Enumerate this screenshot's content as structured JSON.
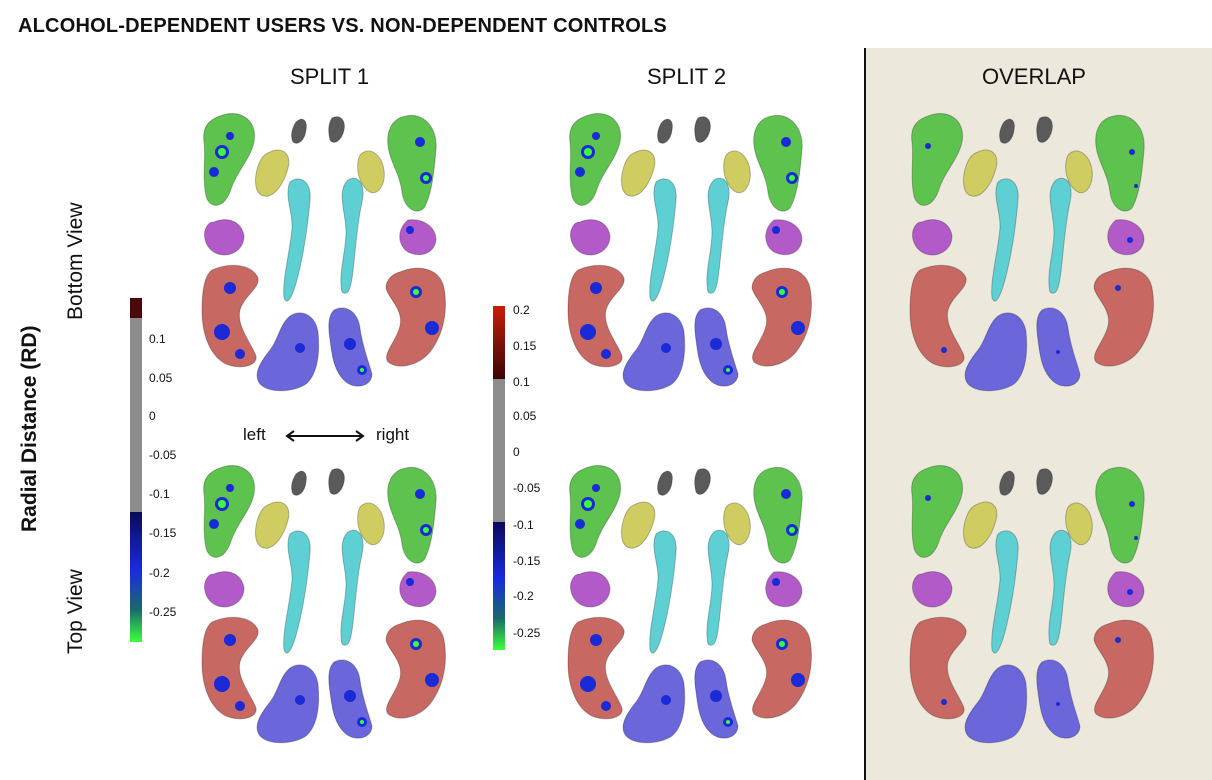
{
  "title": "ALCOHOL-DEPENDENT USERS VS. NON-DEPENDENT CONTROLS",
  "columns": [
    "SPLIT 1",
    "SPLIT 2",
    "OVERLAP"
  ],
  "row_labels": {
    "bottom": "Bottom View",
    "top": "Top View"
  },
  "y_label": "Radial Distance (RD)",
  "direction": {
    "left": "left",
    "right": "right"
  },
  "colorbar_left": {
    "ticks": [
      "0.1",
      "0.05",
      "0",
      "-0.05",
      "-0.1",
      "-0.15",
      "-0.2",
      "-0.25"
    ],
    "range": [
      -0.29,
      0.14
    ]
  },
  "colorbar_right": {
    "ticks": [
      "0.2",
      "0.15",
      "0.1",
      "0.05",
      "0",
      "-0.05",
      "-0.1",
      "-0.15",
      "-0.2",
      "-0.25"
    ],
    "range": [
      -0.28,
      0.21
    ]
  },
  "structure_colors": {
    "hippocampus": "#5ec24e",
    "amygdala": "#cfcc62",
    "accumbens": "#5a5a5a",
    "caudate": "#5ecfd2",
    "thalamus": "#b25ac8",
    "putamen": "#c86862",
    "pallidum": "#6b66d9"
  },
  "map_colors": {
    "significant_negative": "#1a2ad6",
    "strong_negative": "#3cff3c",
    "significant_positive": "#8a1010"
  }
}
